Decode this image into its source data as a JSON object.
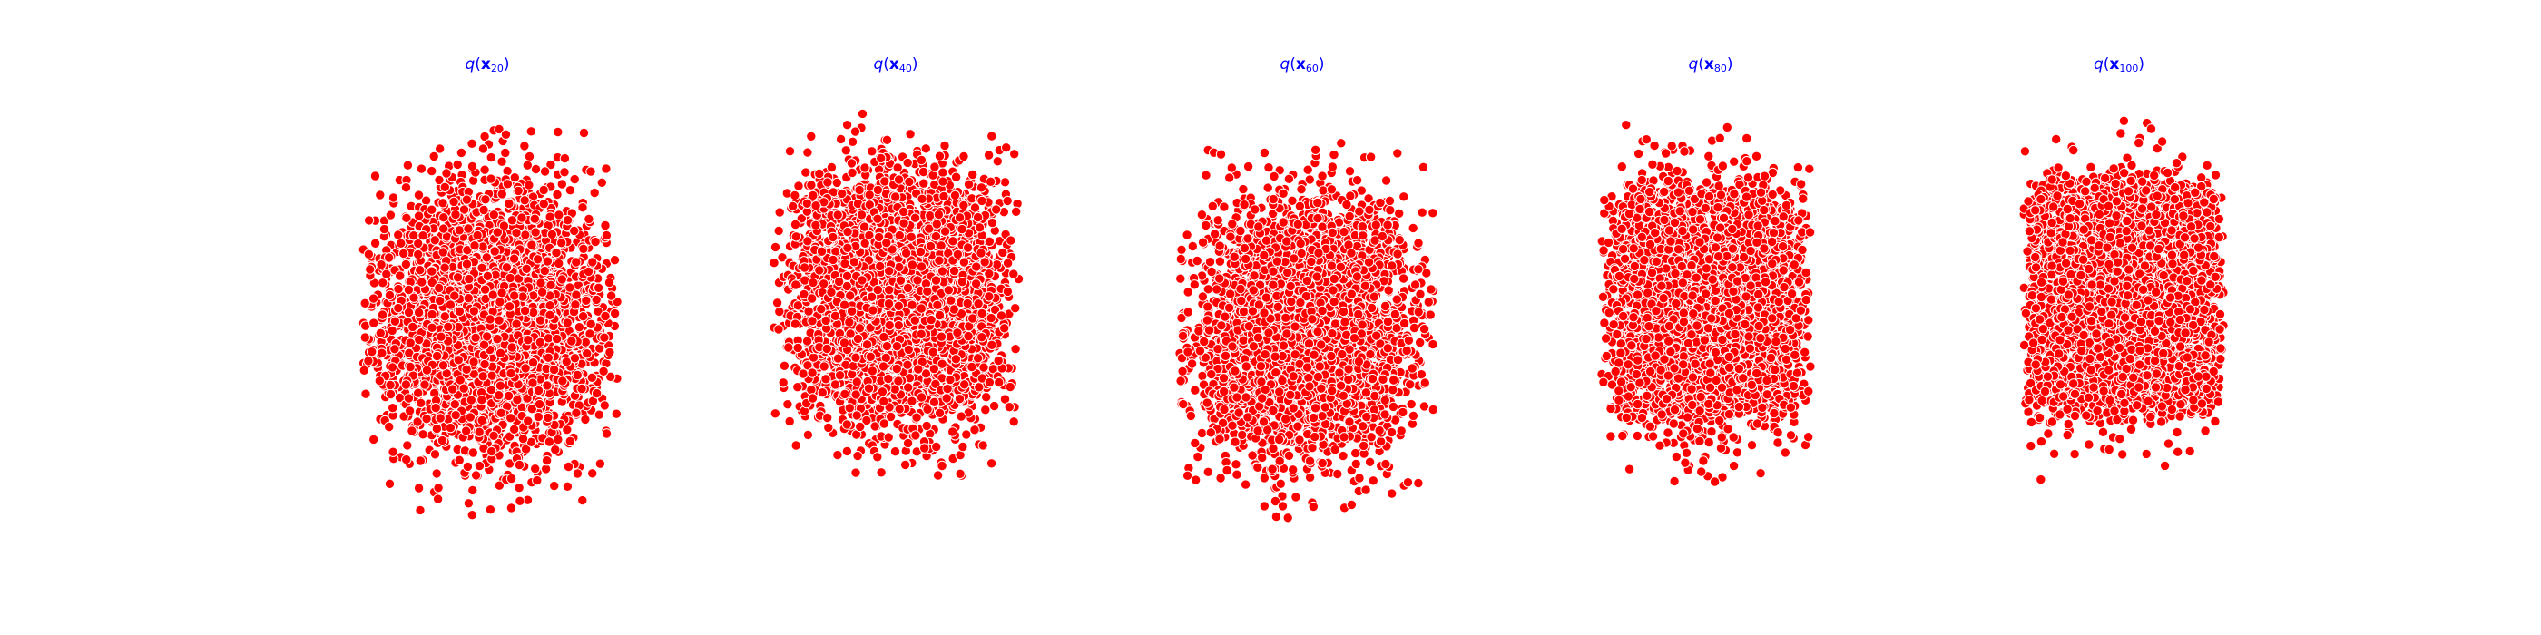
{
  "figure": {
    "background_color": "#ffffff"
  },
  "chart_data": [
    {
      "type": "scatter",
      "title": "q(x20)",
      "point_color": "#ff0000",
      "edge_color": "#ffffff",
      "axes_visible": false,
      "grid": false
    },
    {
      "type": "scatter",
      "title": "q(x40)",
      "point_color": "#ff0000",
      "edge_color": "#ffffff",
      "axes_visible": false,
      "grid": false
    },
    {
      "type": "scatter",
      "title": "q(x60)",
      "point_color": "#ff0000",
      "edge_color": "#ffffff",
      "axes_visible": false,
      "grid": false
    },
    {
      "type": "scatter",
      "title": "q(x80)",
      "point_color": "#ff0000",
      "edge_color": "#ffffff",
      "axes_visible": false,
      "grid": false
    },
    {
      "type": "scatter",
      "title": "q(x100)",
      "point_color": "#ff0000",
      "edge_color": "#ffffff",
      "axes_visible": false,
      "grid": false
    }
  ]
}
